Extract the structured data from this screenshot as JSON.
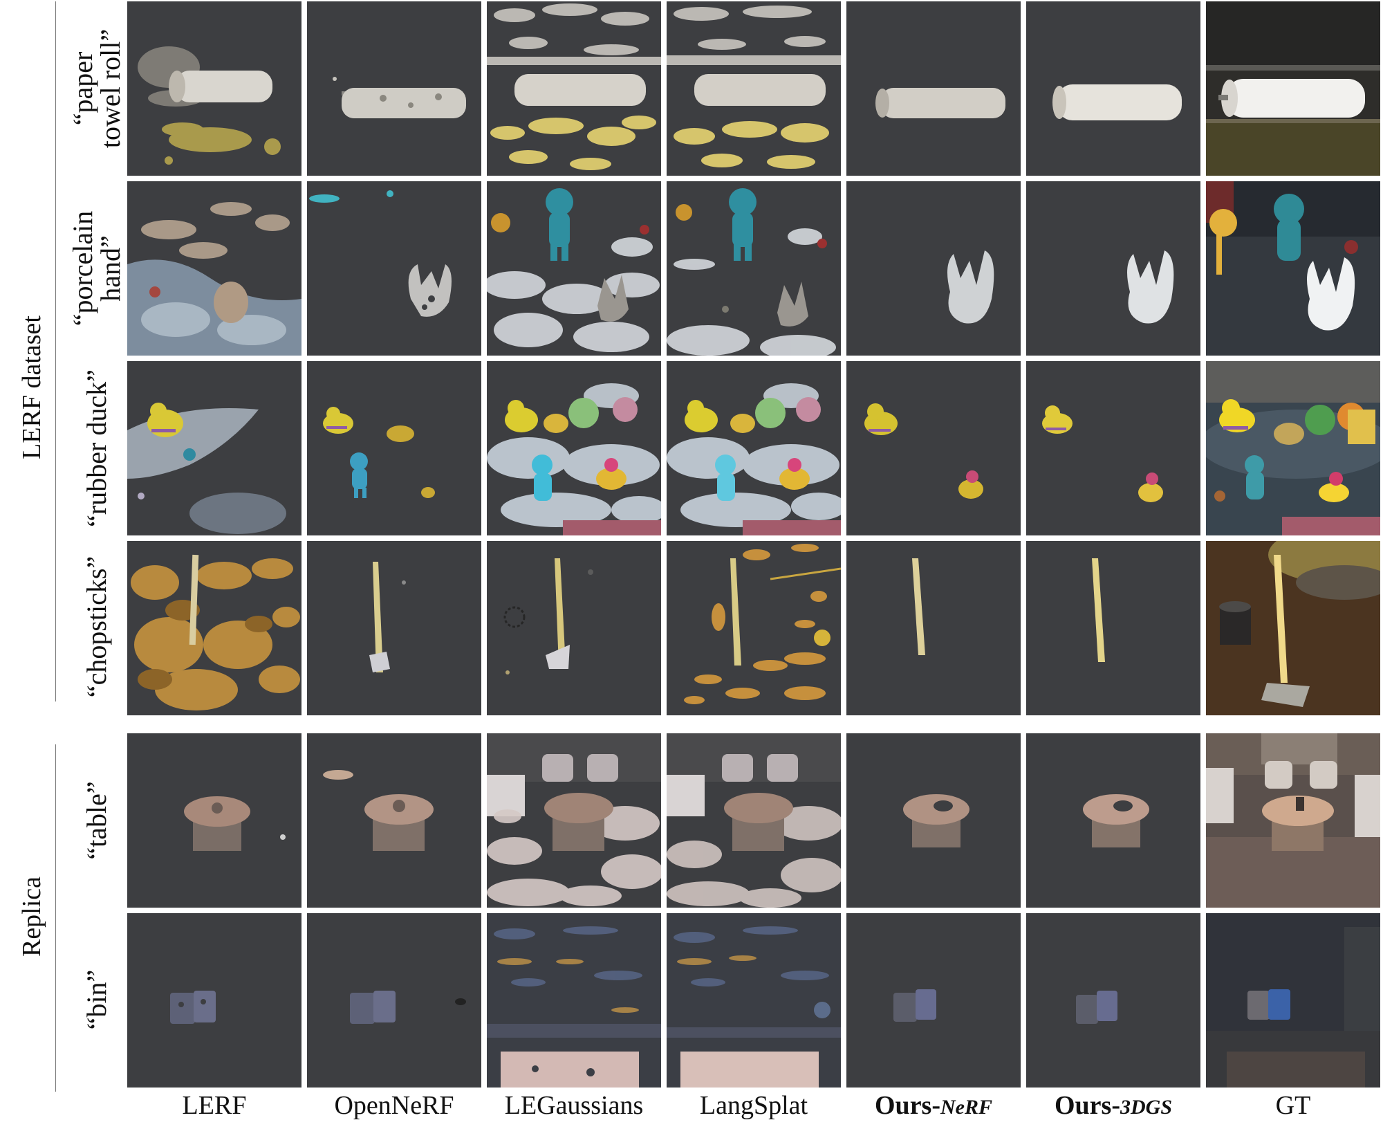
{
  "groups": [
    {
      "label": "LERF dataset"
    },
    {
      "label": "Replica"
    }
  ],
  "queries": [
    "“paper\ntowel roll”",
    "“porcelain\nhand”",
    "“rubber duck”",
    "“chopsticks”",
    "“table”",
    "“bin”"
  ],
  "columns": [
    {
      "label": "LERF"
    },
    {
      "label": "OpenNeRF"
    },
    {
      "label": "LEGaussians"
    },
    {
      "label": "LangSplat"
    },
    {
      "label_bold": "Ours-",
      "label_italic": "NeRF"
    },
    {
      "label_bold": "Ours-",
      "label_italic": "3DGS"
    },
    {
      "label": "GT"
    }
  ],
  "colors": {
    "background": "#3d3e41",
    "gt_background": "#2b2a28",
    "paper_roll": "#e6e3dc",
    "yellow_noise": "#d8c878",
    "porcelain": "#d9dde0",
    "duck_yellow": "#e3c94a",
    "chopstick": "#e0cf88",
    "table_wood": "#a8897a",
    "bin_blue": "#5d6177",
    "floater_white": "#c9cdd4",
    "floater_orange": "#c6903d"
  }
}
